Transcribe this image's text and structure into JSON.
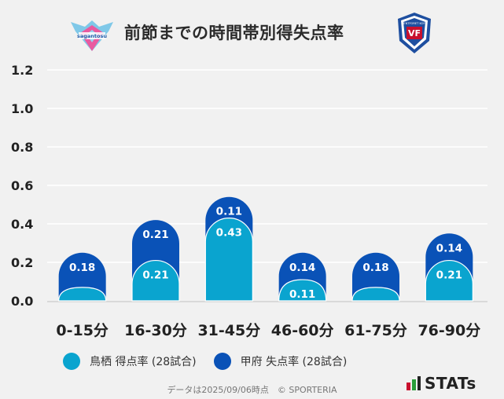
{
  "header": {
    "title": "前節までの時間帯別得失点率",
    "home_logo_text": "sagantosu",
    "away_logo_text": "VENTFORET KOFU"
  },
  "legend": {
    "home_label": "鳥栖 得点率 (28試合)",
    "away_label": "甲府 失点率 (28試合)"
  },
  "footer": {
    "note": "データは2025/09/06時点　© SPORTERIA",
    "brand": "STATs"
  },
  "colors": {
    "home": "#0aa4cf",
    "away": "#0a52b7",
    "grid": "#ffffff",
    "axis_text": "#222222"
  },
  "chart_data": {
    "type": "bar",
    "stacked": true,
    "title": "前節までの時間帯別得失点率",
    "categories": [
      "0-15分",
      "16-30分",
      "31-45分",
      "46-60分",
      "61-75分",
      "76-90分"
    ],
    "series": [
      {
        "name": "鳥栖 得点率 (28試合)",
        "values": [
          0.07,
          0.21,
          0.43,
          0.11,
          0.07,
          0.21
        ],
        "labels": [
          "",
          "0.21",
          "0.43",
          "0.11",
          "",
          "0.21"
        ]
      },
      {
        "name": "甲府 失点率 (28試合)",
        "values": [
          0.18,
          0.21,
          0.11,
          0.14,
          0.18,
          0.14
        ],
        "labels": [
          "0.18",
          "0.21",
          "0.11",
          "0.14",
          "0.18",
          "0.14"
        ]
      }
    ],
    "yticks": [
      "0.0",
      "0.2",
      "0.4",
      "0.6",
      "0.8",
      "1.0",
      "1.2"
    ],
    "ylim": [
      0,
      1.2
    ],
    "xlabel": "",
    "ylabel": "",
    "grid": true,
    "legend_position": "bottom"
  }
}
